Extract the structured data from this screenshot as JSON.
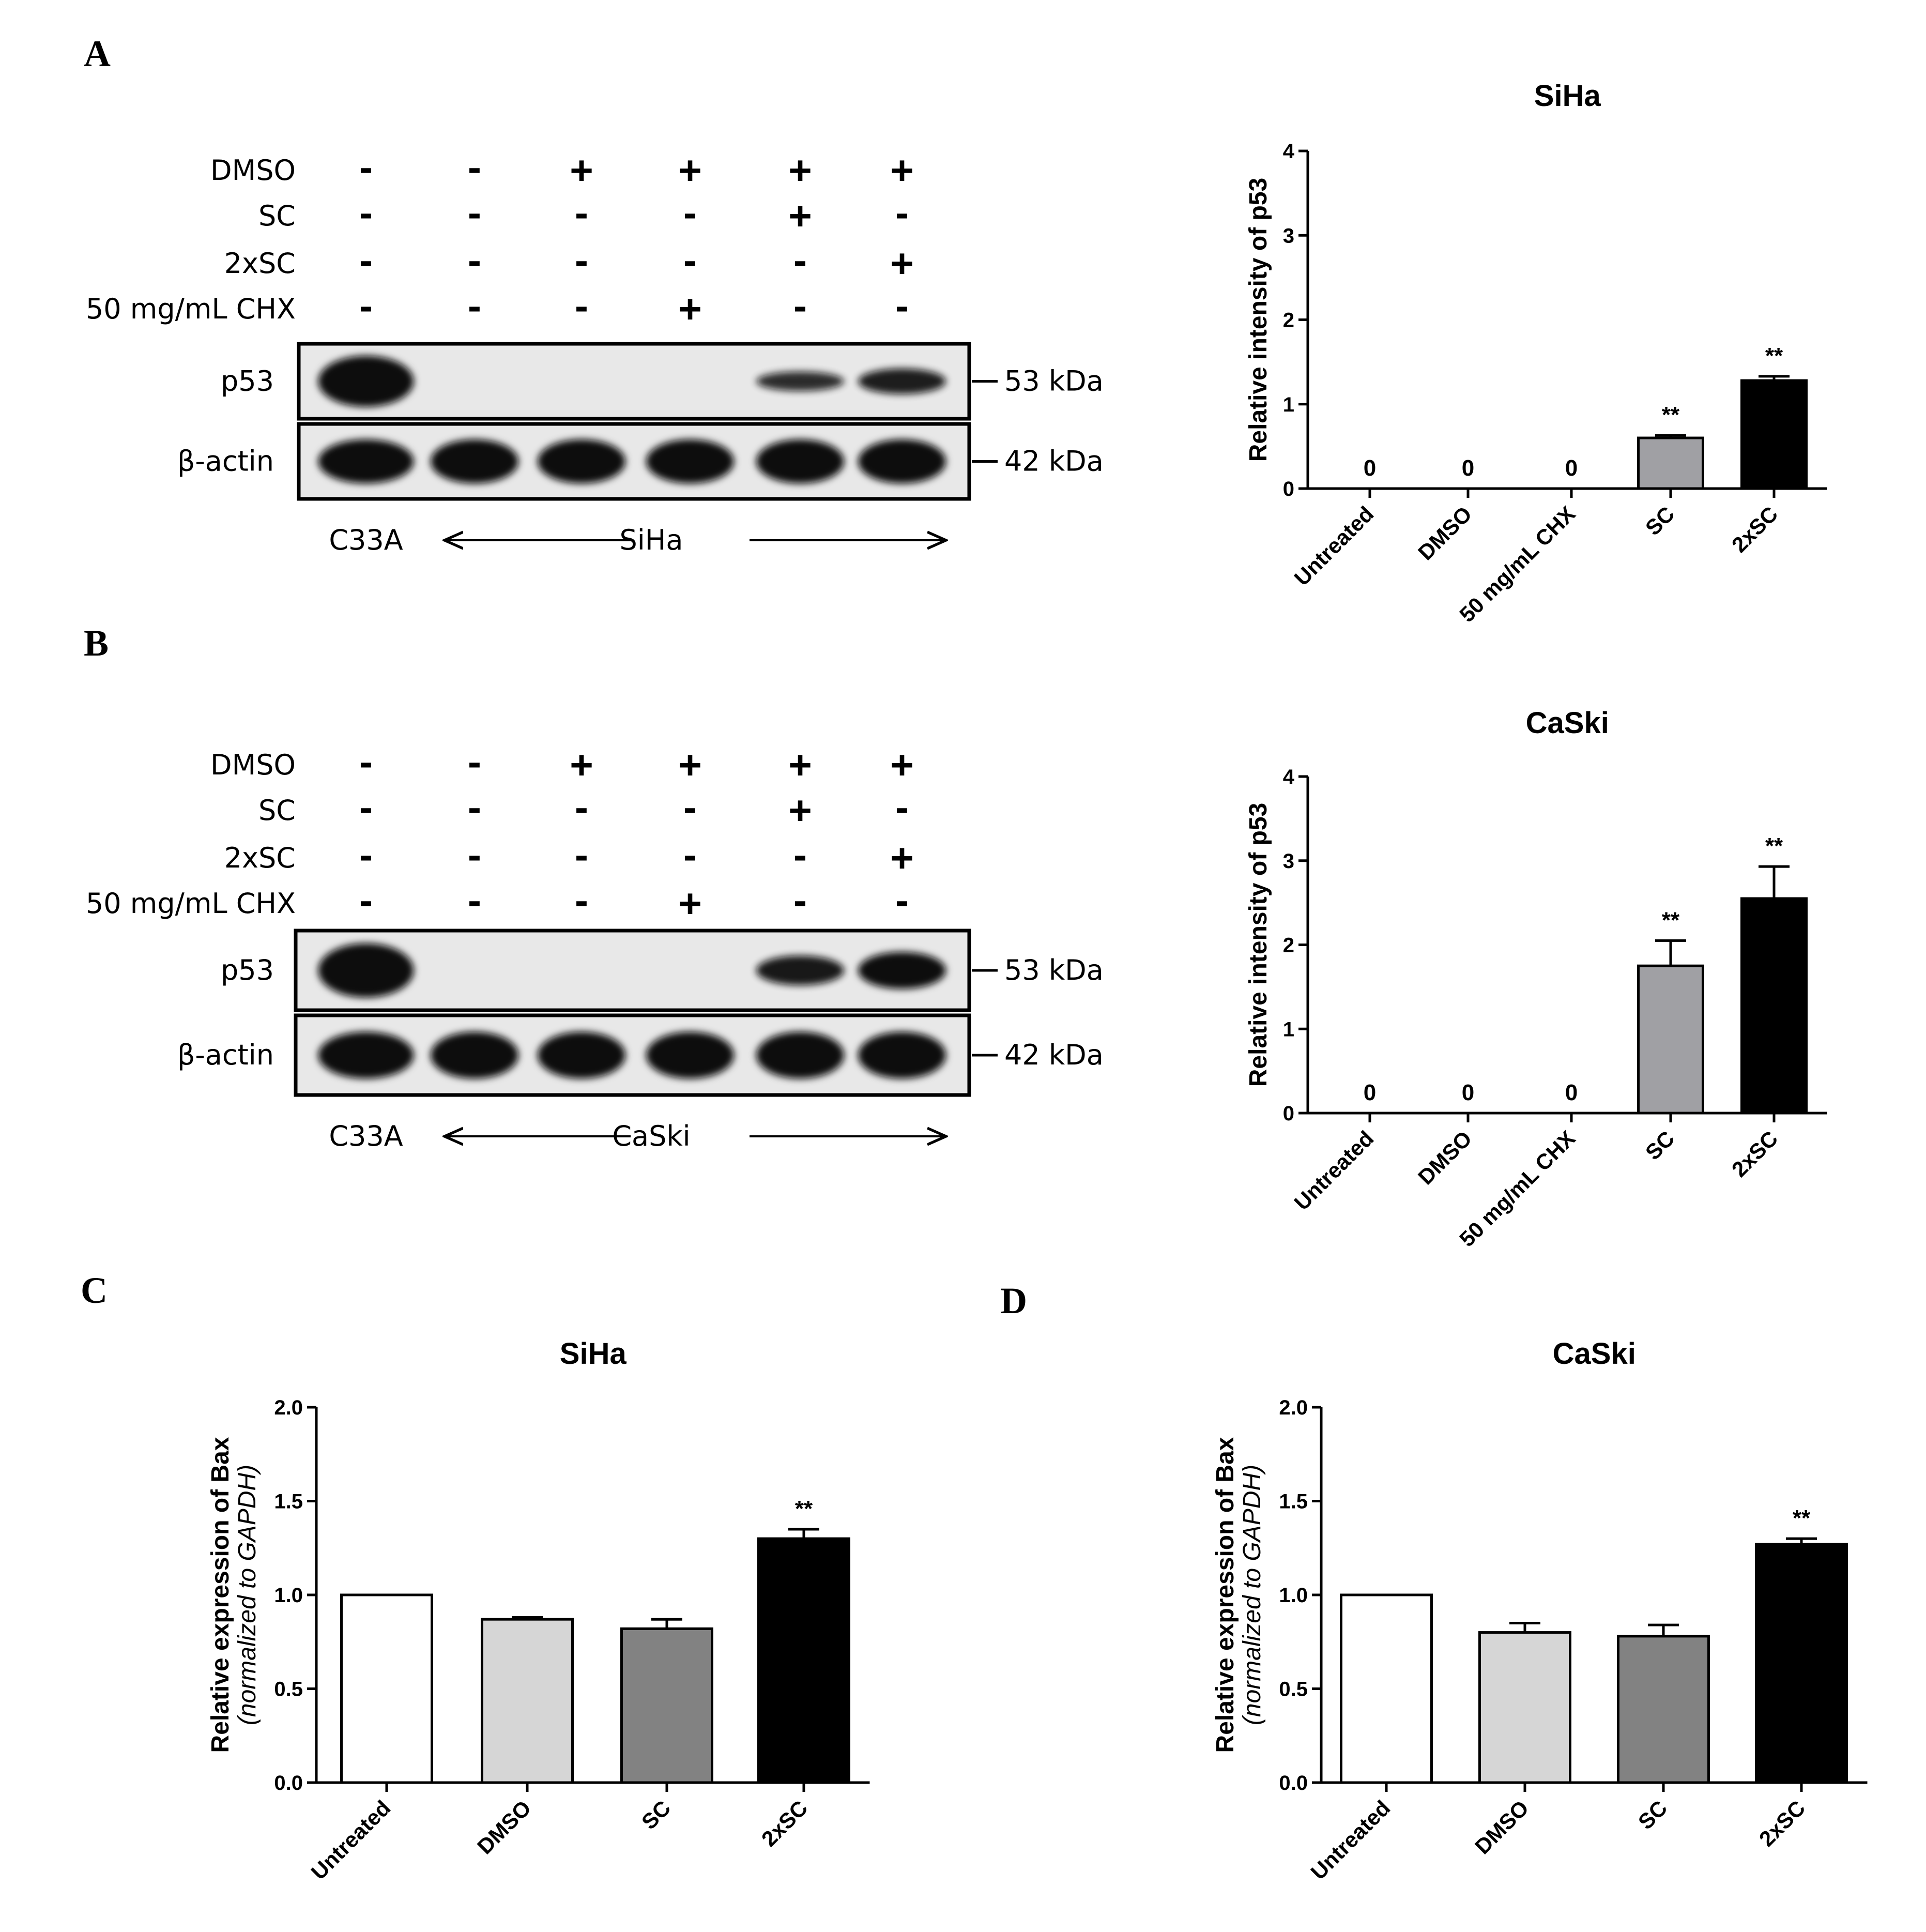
{
  "panels": [
    {
      "letter": "A"
    },
    {
      "letter": "B"
    },
    {
      "letter": "C"
    },
    {
      "letter": "D"
    }
  ],
  "blots": [
    {
      "treatments": [
        {
          "label": "DMSO",
          "signs": [
            "-",
            "-",
            "+",
            "+",
            "+",
            "+"
          ]
        },
        {
          "label": "SC",
          "signs": [
            "-",
            "-",
            "-",
            "-",
            "+",
            "-"
          ]
        },
        {
          "label": "2xSC",
          "signs": [
            "-",
            "-",
            "-",
            "-",
            "-",
            "+"
          ]
        },
        {
          "label": "50 mg/mL CHX",
          "signs": [
            "-",
            "-",
            "-",
            "+",
            "-",
            "-"
          ]
        }
      ],
      "bands": [
        {
          "label": "p53",
          "size": "53 kDa",
          "intensity": [
            1.0,
            0,
            0,
            0,
            0.42,
            0.55
          ]
        },
        {
          "label": "β-actin",
          "size": "42 kDa",
          "intensity": [
            1,
            1,
            1,
            1,
            1,
            1
          ]
        }
      ],
      "control_lane": "C33A",
      "cell_line": "SiHa"
    },
    {
      "treatments": [
        {
          "label": "DMSO",
          "signs": [
            "-",
            "-",
            "+",
            "+",
            "+",
            "+"
          ]
        },
        {
          "label": "SC",
          "signs": [
            "-",
            "-",
            "-",
            "-",
            "+",
            "-"
          ]
        },
        {
          "label": "2xSC",
          "signs": [
            "-",
            "-",
            "-",
            "-",
            "-",
            "+"
          ]
        },
        {
          "label": "50 mg/mL CHX",
          "signs": [
            "-",
            "-",
            "-",
            "+",
            "-",
            "-"
          ]
        }
      ],
      "bands": [
        {
          "label": "p53",
          "size": "53 kDa",
          "intensity": [
            1.0,
            0,
            0,
            0,
            0.6,
            0.75
          ]
        },
        {
          "label": "β-actin",
          "size": "42 kDa",
          "intensity": [
            1,
            1,
            1,
            1,
            1,
            1
          ]
        }
      ],
      "control_lane": "C33A",
      "cell_line": "CaSki"
    }
  ],
  "chart_data": [
    {
      "type": "bar",
      "title": "SiHa",
      "ylabel": "Relative intensity of p53",
      "ylabel_line2": "",
      "ylim": [
        0,
        4
      ],
      "yticks": [
        "0",
        "1",
        "2",
        "3",
        "4"
      ],
      "categories": [
        "Untreated",
        "DMSO",
        "50 mg/mL CHX",
        "SC",
        "2xSC"
      ],
      "values": [
        0,
        0,
        0,
        0.6,
        1.28
      ],
      "errors": [
        0,
        0,
        0,
        0.03,
        0.05
      ],
      "bar_colors": [
        "#ffffff",
        "#ffffff",
        "#ffffff",
        "#a0a0a4",
        "#000000"
      ],
      "annotations": [
        "0",
        "0",
        "0",
        "**",
        "**"
      ],
      "grid": false
    },
    {
      "type": "bar",
      "title": "CaSki",
      "ylabel": "Relative intensity of p53",
      "ylabel_line2": "",
      "ylim": [
        0,
        4
      ],
      "yticks": [
        "0",
        "1",
        "2",
        "3",
        "4"
      ],
      "categories": [
        "Untreated",
        "DMSO",
        "50 mg/mL CHX",
        "SC",
        "2xSC"
      ],
      "values": [
        0,
        0,
        0,
        1.75,
        2.55
      ],
      "errors": [
        0,
        0,
        0,
        0.3,
        0.38
      ],
      "bar_colors": [
        "#ffffff",
        "#ffffff",
        "#ffffff",
        "#a0a0a4",
        "#000000"
      ],
      "annotations": [
        "0",
        "0",
        "0",
        "**",
        "**"
      ],
      "grid": false
    },
    {
      "type": "bar",
      "title": "SiHa",
      "ylabel": "Relative expression of Bax",
      "ylabel_line2": "(normalized to GAPDH)",
      "ylim": [
        0,
        2
      ],
      "yticks": [
        "0.0",
        "0.5",
        "1.0",
        "1.5",
        "2.0"
      ],
      "categories": [
        "Untreated",
        "DMSO",
        "SC",
        "2xSC"
      ],
      "values": [
        1.0,
        0.87,
        0.82,
        1.3
      ],
      "errors": [
        0,
        0.01,
        0.05,
        0.05
      ],
      "bar_colors": [
        "#ffffff",
        "#d6d6d6",
        "#828282",
        "#000000"
      ],
      "annotations": [
        "",
        "",
        "",
        "**"
      ],
      "grid": false
    },
    {
      "type": "bar",
      "title": "CaSki",
      "ylabel": "Relative expression of Bax",
      "ylabel_line2": "(normalized to GAPDH)",
      "ylim": [
        0,
        2
      ],
      "yticks": [
        "0.0",
        "0.5",
        "1.0",
        "1.5",
        "2.0"
      ],
      "categories": [
        "Untreated",
        "DMSO",
        "SC",
        "2xSC"
      ],
      "values": [
        1.0,
        0.8,
        0.78,
        1.27
      ],
      "errors": [
        0,
        0.05,
        0.06,
        0.03
      ],
      "bar_colors": [
        "#ffffff",
        "#d6d6d6",
        "#828282",
        "#000000"
      ],
      "annotations": [
        "",
        "",
        "",
        "**"
      ],
      "grid": false
    }
  ]
}
